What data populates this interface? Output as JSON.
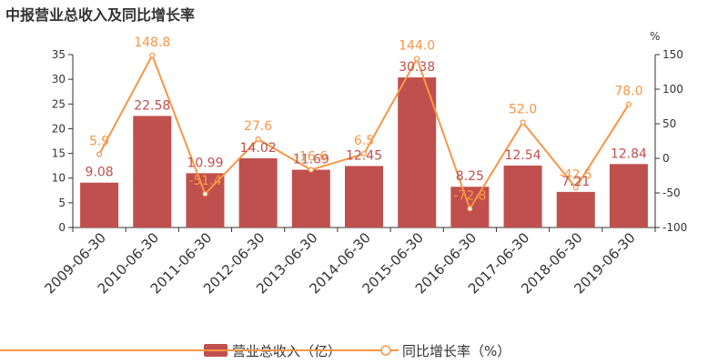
{
  "chart_data": {
    "type": "bar",
    "title": "中报营业总收入及同比增长率",
    "categories": [
      "2009-06-30",
      "2010-06-30",
      "2011-06-30",
      "2012-06-30",
      "2013-06-30",
      "2014-06-30",
      "2015-06-30",
      "2016-06-30",
      "2017-06-30",
      "2018-06-30",
      "2019-06-30"
    ],
    "series": [
      {
        "name": "营业总收入（亿）",
        "type": "bar",
        "axis": "left",
        "values": [
          9.08,
          22.58,
          10.99,
          14.02,
          11.69,
          12.45,
          30.38,
          8.25,
          12.54,
          7.21,
          12.84
        ],
        "labels": [
          "9.08",
          "22.58",
          "10.99",
          "14.02",
          "11.69",
          "12.45",
          "30.38",
          "8.25",
          "12.54",
          "7.21",
          "12.84"
        ],
        "color": "#c0504d"
      },
      {
        "name": "同比增长率（%）",
        "type": "line",
        "axis": "right",
        "values": [
          5.9,
          148.8,
          -51.4,
          27.6,
          -16.6,
          6.5,
          144.0,
          -72.8,
          52.0,
          -42.5,
          78.0
        ],
        "labels": [
          "5.9",
          "148.8",
          "-51.4",
          "27.6",
          "-16.6",
          "6.5",
          "144.0",
          "-72.8",
          "52.0",
          "-42.5",
          "78.0"
        ],
        "color": "#f79646"
      }
    ],
    "y_left": {
      "ylim": [
        0,
        35
      ],
      "ticks": [
        "0",
        "5",
        "10",
        "15",
        "20",
        "25",
        "30",
        "35"
      ]
    },
    "y_right": {
      "ylim": [
        -100,
        150
      ],
      "ticks": [
        "-100",
        "-50",
        "0",
        "50",
        "100",
        "150"
      ],
      "unit": "%"
    },
    "legend_position": "bottom-center",
    "grid": false
  }
}
